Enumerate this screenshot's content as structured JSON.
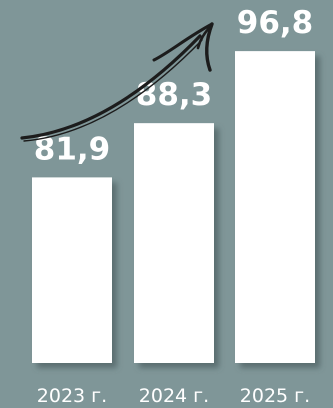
{
  "colors": {
    "background": "#7f9698",
    "bar": "#ffffff",
    "bar_shadow": "#4f6264",
    "text": "#ffffff",
    "arrow": "#1c1c1c"
  },
  "decoration": {
    "trend_arrow_icon": "hand-drawn-upward-arrow-icon"
  },
  "chart_data": {
    "type": "bar",
    "categories": [
      "2023 г.",
      "2024 г.",
      "2025 г."
    ],
    "values": [
      81.9,
      88.3,
      96.8
    ],
    "value_labels": [
      "81,9",
      "88,3",
      "96,8"
    ],
    "ylim": [
      60,
      100
    ]
  }
}
